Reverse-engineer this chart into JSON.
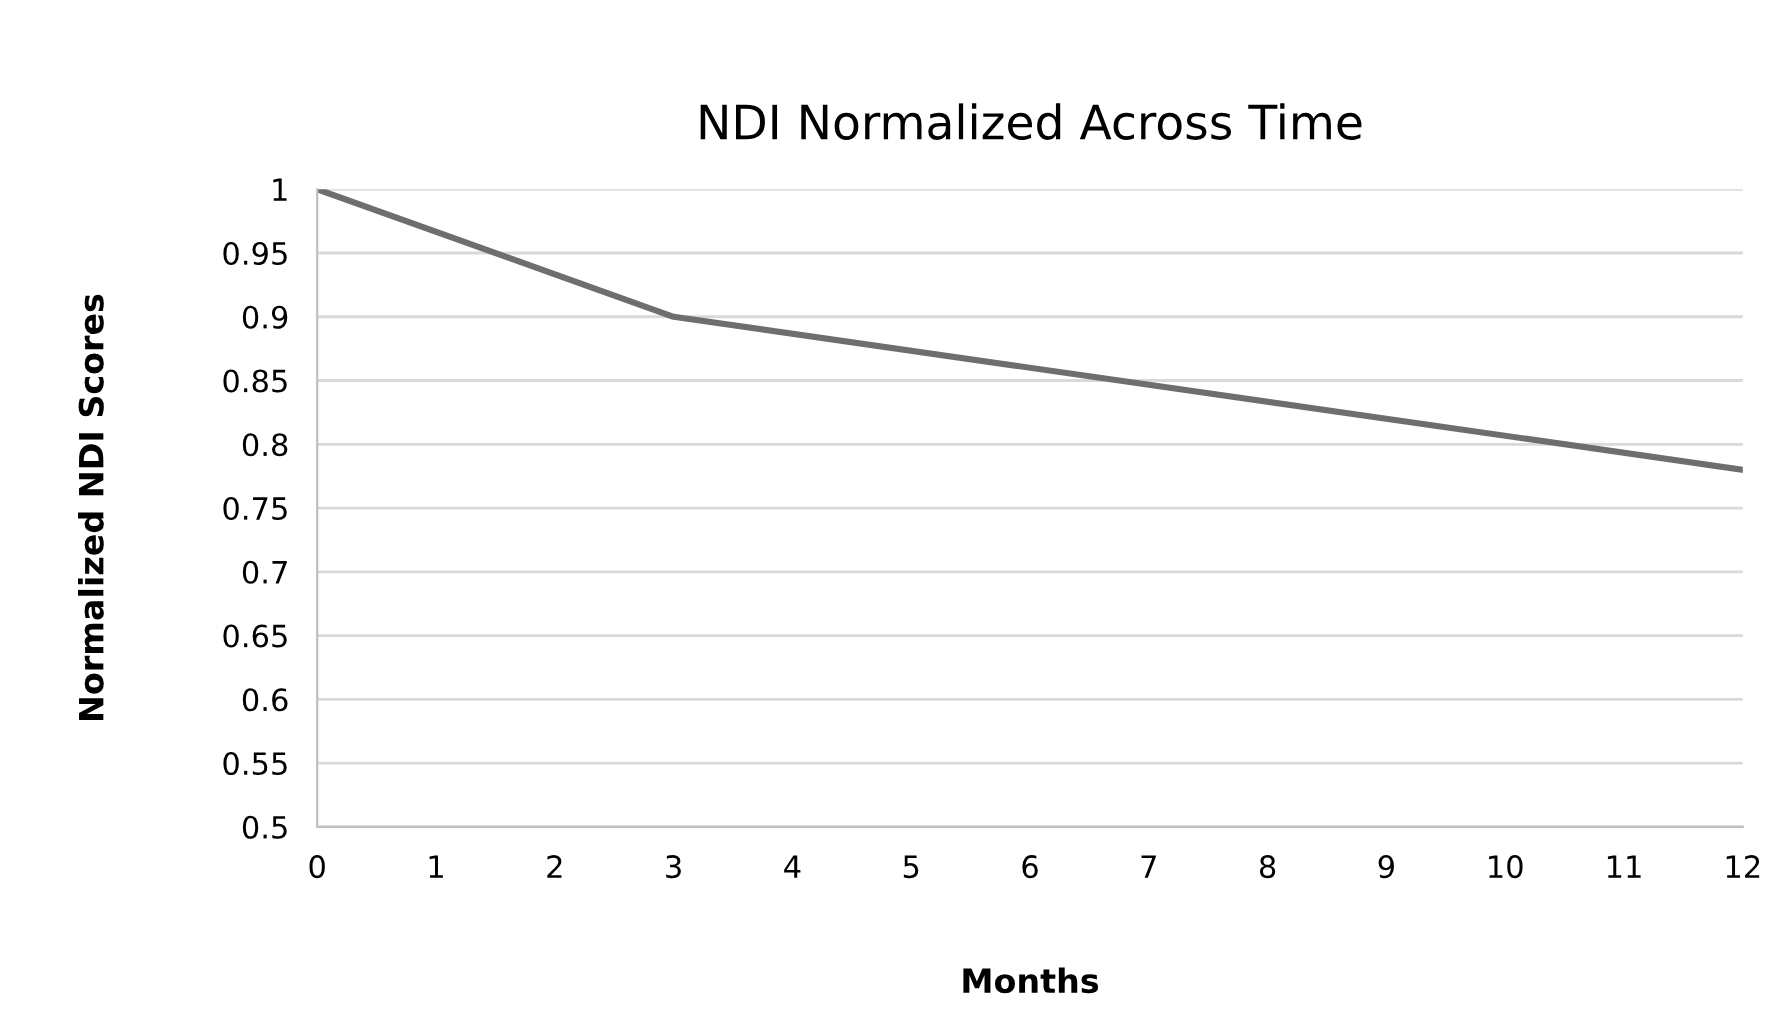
{
  "chart_data": {
    "type": "line",
    "title": "NDI Normalized Across Time",
    "xlabel": "Months",
    "ylabel": "Normalized NDI Scores",
    "x": [
      0,
      3,
      12
    ],
    "series": [
      {
        "color": "#6e6e6e",
        "values": [
          1,
          0.9,
          0.78
        ]
      }
    ],
    "xlim": [
      0,
      12
    ],
    "xticks": [
      0,
      1,
      2,
      3,
      4,
      5,
      6,
      7,
      8,
      9,
      10,
      11,
      12
    ],
    "ylim": [
      0.5,
      1
    ],
    "yticks": [
      0.5,
      0.55,
      0.6,
      0.65,
      0.7,
      0.75,
      0.8,
      0.85,
      0.9,
      0.95,
      1
    ],
    "grid": "y",
    "legend": false
  }
}
